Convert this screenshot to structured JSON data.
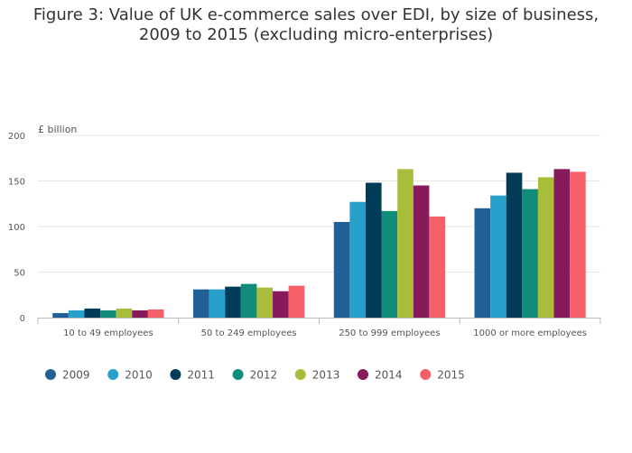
{
  "chart_data": {
    "type": "bar",
    "title": "Figure 3: Value of UK e-commerce sales over EDI, by size of business, 2009 to 2015 (excluding micro-enterprises)",
    "ylabel": "£ billion",
    "xlabel": "",
    "ylim": [
      0,
      200
    ],
    "yticks": [
      0,
      50,
      100,
      150,
      200
    ],
    "grid": true,
    "legend_position": "bottom-left",
    "categories": [
      "10 to 49 employees",
      "50 to 249 employees",
      "250 to 999 employees",
      "1000 or more employees"
    ],
    "series": [
      {
        "name": "2009",
        "color": "#206095",
        "values": [
          5,
          31,
          105,
          120
        ]
      },
      {
        "name": "2010",
        "color": "#27a0cc",
        "values": [
          8,
          31,
          127,
          134
        ]
      },
      {
        "name": "2011",
        "color": "#003c57",
        "values": [
          10,
          34,
          148,
          159
        ]
      },
      {
        "name": "2012",
        "color": "#118c7b",
        "values": [
          8,
          37,
          117,
          141
        ]
      },
      {
        "name": "2013",
        "color": "#a8bd3a",
        "values": [
          10,
          33,
          163,
          154
        ]
      },
      {
        "name": "2014",
        "color": "#871a5b",
        "values": [
          8,
          29,
          145,
          163
        ]
      },
      {
        "name": "2015",
        "color": "#f66068",
        "values": [
          9,
          35,
          111,
          160
        ]
      }
    ]
  }
}
